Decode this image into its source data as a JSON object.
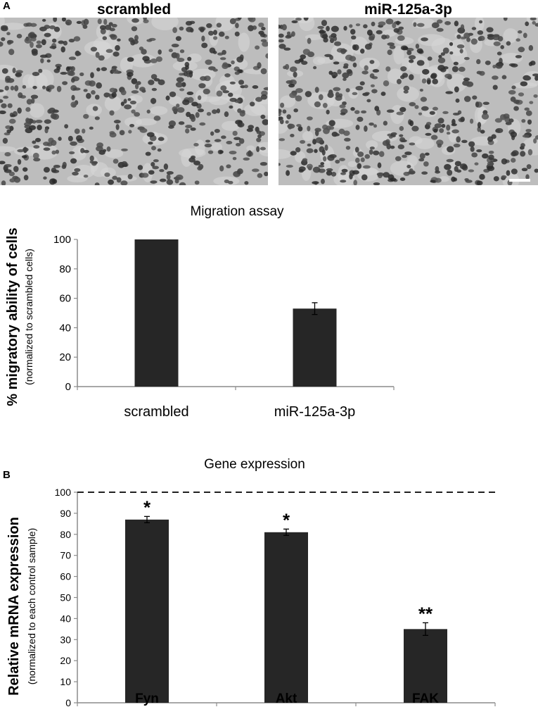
{
  "panel_a": {
    "letter": "A",
    "images": [
      {
        "label": "scrambled"
      },
      {
        "label": "miR-125a-3p"
      }
    ]
  },
  "panel_b": {
    "letter": "B"
  },
  "colors": {
    "bar": "#262626",
    "axis": "#8c8c8c",
    "micrograph_bg": "#bdbdbd",
    "nucleus": "#3a3a3a"
  },
  "chart_data": [
    {
      "type": "bar",
      "title": "Migration assay",
      "ylabel": "% migratory ability of cells",
      "ylabel_sub": "(normalized to scrambled cells)",
      "categories": [
        "scrambled",
        "miR-125a-3p"
      ],
      "values": [
        100,
        53
      ],
      "errors": [
        0,
        4
      ],
      "ylim": [
        0,
        100
      ],
      "yticks": [
        0,
        20,
        40,
        60,
        80,
        100
      ],
      "grid": false,
      "legend": "none"
    },
    {
      "type": "bar",
      "title": "Gene expression",
      "ylabel": "Relative mRNA expression",
      "ylabel_sub": "(normalized to each control sample)",
      "categories": [
        "Fyn",
        "Akt",
        "FAK"
      ],
      "values": [
        87,
        81,
        35
      ],
      "errors": [
        1.5,
        1.5,
        3
      ],
      "annotations": [
        "*",
        "*",
        "**"
      ],
      "reference_line": 100,
      "ylim": [
        0,
        100
      ],
      "yticks": [
        0,
        10,
        20,
        30,
        40,
        50,
        60,
        70,
        80,
        90,
        100
      ],
      "grid": false,
      "legend": "none"
    }
  ]
}
